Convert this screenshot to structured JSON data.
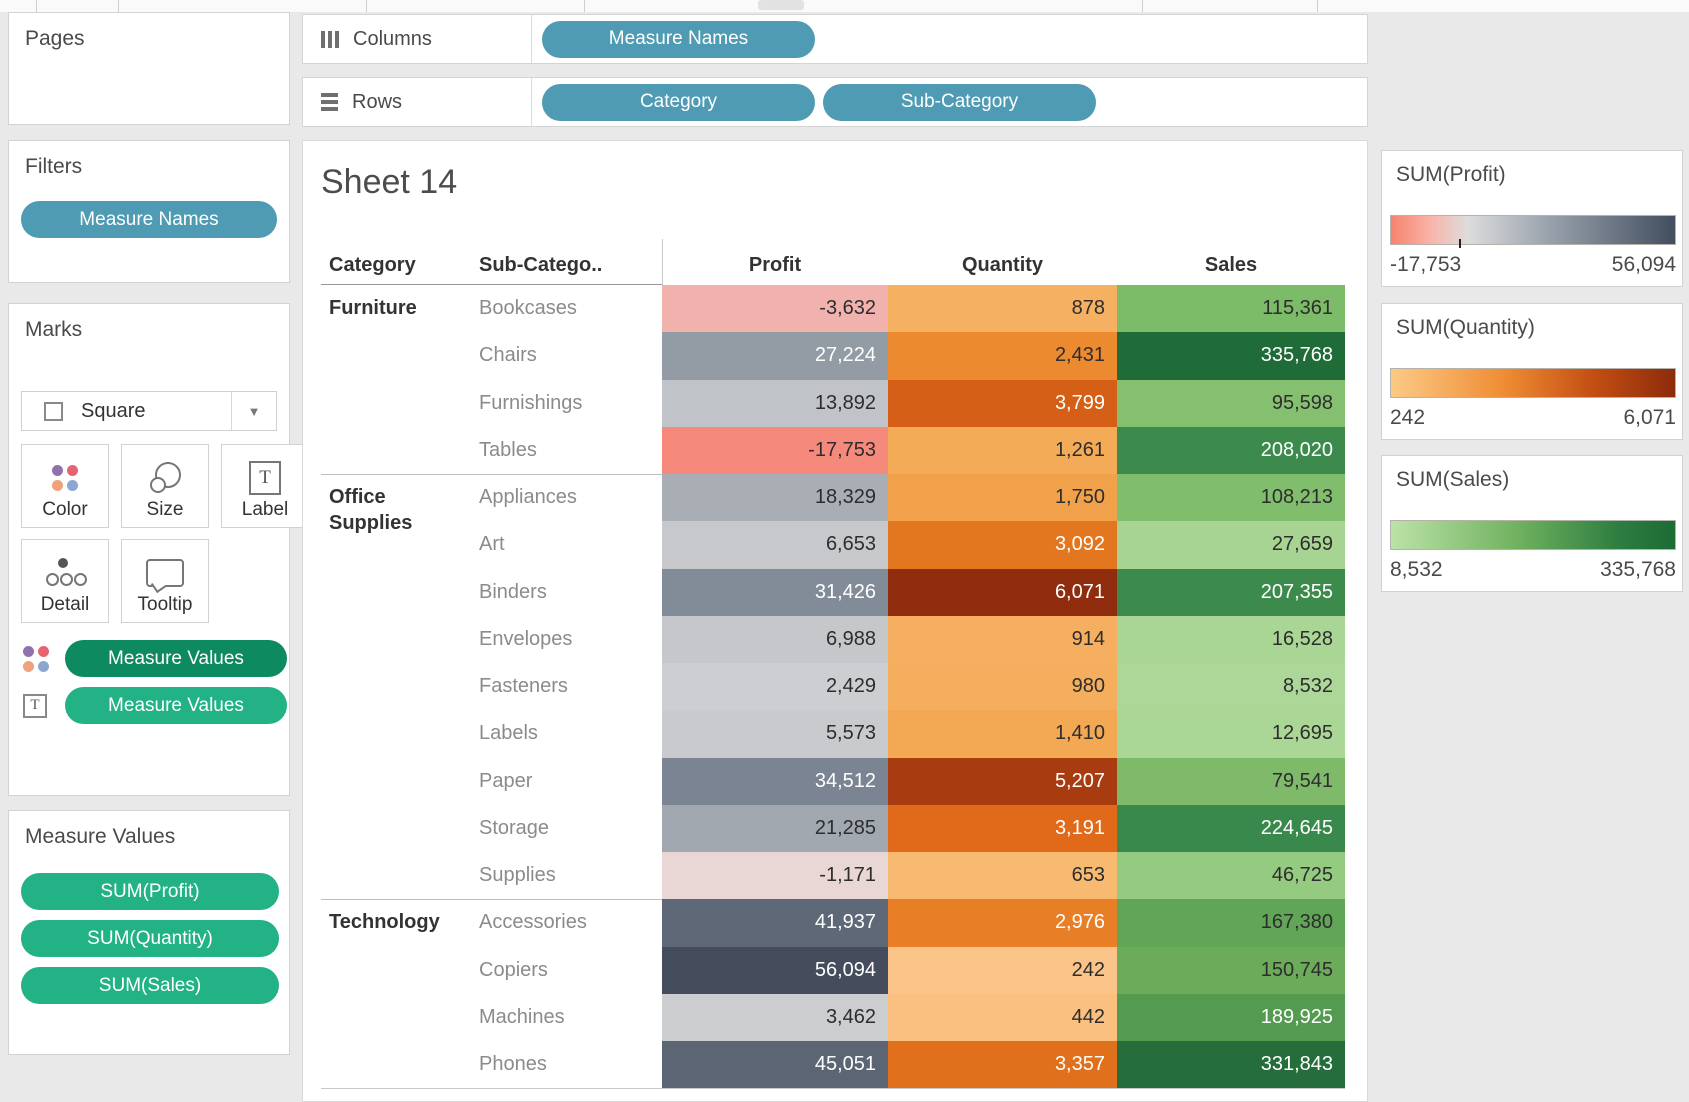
{
  "pages": {
    "title": "Pages"
  },
  "filters": {
    "title": "Filters",
    "pills": [
      {
        "label": "Measure Names",
        "color": "#4e9bb3"
      }
    ]
  },
  "marks": {
    "title": "Marks",
    "mark_type": "Square",
    "dot_colors": [
      "#9272ad",
      "#e8636f",
      "#efa27c",
      "#8ba7d0"
    ],
    "buttons": [
      {
        "label": "Color",
        "icon": "color-dots-icon"
      },
      {
        "label": "Size",
        "icon": "size-icon"
      },
      {
        "label": "Label",
        "icon": "label-icon"
      },
      {
        "label": "Detail",
        "icon": "detail-icon"
      },
      {
        "label": "Tooltip",
        "icon": "tooltip-icon"
      }
    ],
    "pills": [
      {
        "label": "Measure Values",
        "icon": "color-dots-icon",
        "color": "#0d8a5f"
      },
      {
        "label": "Measure Values",
        "icon": "text-icon",
        "color": "#22b286"
      }
    ]
  },
  "measure_values": {
    "title": "Measure Values",
    "pills": [
      {
        "label": "SUM(Profit)",
        "color": "#22b286"
      },
      {
        "label": "SUM(Quantity)",
        "color": "#22b286"
      },
      {
        "label": "SUM(Sales)",
        "color": "#22b286"
      }
    ]
  },
  "shelves": {
    "columns": {
      "label": "Columns",
      "pills": [
        {
          "label": "Measure Names",
          "color": "#4e9bb3"
        }
      ]
    },
    "rows": {
      "label": "Rows",
      "pills": [
        {
          "label": "Category",
          "color": "#4e9bb3"
        },
        {
          "label": "Sub-Category",
          "color": "#4e9bb3"
        }
      ]
    }
  },
  "sheet": {
    "title": "Sheet 14"
  },
  "table": {
    "headers": [
      "Category",
      "Sub-Catego..",
      "Profit",
      "Quantity",
      "Sales"
    ],
    "rows": [
      {
        "category": "Furniture",
        "group_start": true,
        "sub": "Bookcases",
        "cells": [
          {
            "v": "-3,632",
            "bg": "#f1b2ae",
            "fg": "#2d2d2d"
          },
          {
            "v": "878",
            "bg": "#f6b062",
            "fg": "#2d2d2d"
          },
          {
            "v": "115,361",
            "bg": "#7cbb68",
            "fg": "#2d2d2d"
          }
        ]
      },
      {
        "sub": "Chairs",
        "cells": [
          {
            "v": "27,224",
            "bg": "#939ba4",
            "fg": "#ffffff"
          },
          {
            "v": "2,431",
            "bg": "#ec8a30",
            "fg": "#2d2d2d"
          },
          {
            "v": "335,768",
            "bg": "#206c39",
            "fg": "#ffffff"
          }
        ]
      },
      {
        "sub": "Furnishings",
        "cells": [
          {
            "v": "13,892",
            "bg": "#c0c3c7",
            "fg": "#2d2d2d"
          },
          {
            "v": "3,799",
            "bg": "#d55f16",
            "fg": "#ffffff"
          },
          {
            "v": "95,598",
            "bg": "#85c071",
            "fg": "#2d2d2d"
          }
        ]
      },
      {
        "sub": "Tables",
        "cells": [
          {
            "v": "-17,753",
            "bg": "#f58a7c",
            "fg": "#2d2d2d"
          },
          {
            "v": "1,261",
            "bg": "#f4ab57",
            "fg": "#2d2d2d"
          },
          {
            "v": "208,020",
            "bg": "#3c8a4c",
            "fg": "#ffffff"
          }
        ]
      },
      {
        "category": "Office Supplies",
        "group_start": true,
        "sub": "Appliances",
        "cells": [
          {
            "v": "18,329",
            "bg": "#a9aeb5",
            "fg": "#2d2d2d"
          },
          {
            "v": "1,750",
            "bg": "#f2a14b",
            "fg": "#2d2d2d"
          },
          {
            "v": "108,213",
            "bg": "#80bd6c",
            "fg": "#2d2d2d"
          }
        ]
      },
      {
        "sub": "Art",
        "cells": [
          {
            "v": "6,653",
            "bg": "#c6c8cb",
            "fg": "#2d2d2d"
          },
          {
            "v": "3,092",
            "bg": "#e3771f",
            "fg": "#ffffff"
          },
          {
            "v": "27,659",
            "bg": "#a7d492",
            "fg": "#2d2d2d"
          }
        ]
      },
      {
        "sub": "Binders",
        "cells": [
          {
            "v": "31,426",
            "bg": "#828c98",
            "fg": "#ffffff"
          },
          {
            "v": "6,071",
            "bg": "#8e2c0d",
            "fg": "#ffffff"
          },
          {
            "v": "207,355",
            "bg": "#3d8a4d",
            "fg": "#ffffff"
          }
        ]
      },
      {
        "sub": "Envelopes",
        "cells": [
          {
            "v": "6,988",
            "bg": "#c5c7ca",
            "fg": "#2d2d2d"
          },
          {
            "v": "914",
            "bg": "#f6af60",
            "fg": "#2d2d2d"
          },
          {
            "v": "16,528",
            "bg": "#aad695",
            "fg": "#2d2d2d"
          }
        ]
      },
      {
        "sub": "Fasteners",
        "cells": [
          {
            "v": "2,429",
            "bg": "#cdced1",
            "fg": "#2d2d2d"
          },
          {
            "v": "980",
            "bg": "#f5ae5e",
            "fg": "#2d2d2d"
          },
          {
            "v": "8,532",
            "bg": "#acd798",
            "fg": "#2d2d2d"
          }
        ]
      },
      {
        "sub": "Labels",
        "cells": [
          {
            "v": "5,573",
            "bg": "#c8cacd",
            "fg": "#2d2d2d"
          },
          {
            "v": "1,410",
            "bg": "#f3a853",
            "fg": "#2d2d2d"
          },
          {
            "v": "12,695",
            "bg": "#aad696",
            "fg": "#2d2d2d"
          }
        ]
      },
      {
        "sub": "Paper",
        "cells": [
          {
            "v": "34,512",
            "bg": "#7a8492",
            "fg": "#ffffff"
          },
          {
            "v": "5,207",
            "bg": "#a83c10",
            "fg": "#ffffff"
          },
          {
            "v": "79,541",
            "bg": "#7eba69",
            "fg": "#2d2d2d"
          }
        ]
      },
      {
        "sub": "Storage",
        "cells": [
          {
            "v": "21,285",
            "bg": "#a2a8b0",
            "fg": "#2d2d2d"
          },
          {
            "v": "3,191",
            "bg": "#e06a19",
            "fg": "#ffffff"
          },
          {
            "v": "224,645",
            "bg": "#3a894c",
            "fg": "#ffffff"
          }
        ]
      },
      {
        "sub": "Supplies",
        "cells": [
          {
            "v": "-1,171",
            "bg": "#e8d7d5",
            "fg": "#2d2d2d"
          },
          {
            "v": "653",
            "bg": "#f8ba70",
            "fg": "#2d2d2d"
          },
          {
            "v": "46,725",
            "bg": "#95ca81",
            "fg": "#2d2d2d"
          }
        ]
      },
      {
        "category": "Technology",
        "group_start": true,
        "sub": "Accessories",
        "cells": [
          {
            "v": "41,937",
            "bg": "#5e6877",
            "fg": "#ffffff"
          },
          {
            "v": "2,976",
            "bg": "#e87e26",
            "fg": "#ffffff"
          },
          {
            "v": "167,380",
            "bg": "#61a557",
            "fg": "#2d2d2d"
          }
        ]
      },
      {
        "sub": "Copiers",
        "cells": [
          {
            "v": "56,094",
            "bg": "#454d5d",
            "fg": "#ffffff"
          },
          {
            "v": "242",
            "bg": "#fac489",
            "fg": "#2d2d2d"
          },
          {
            "v": "150,745",
            "bg": "#6cab5a",
            "fg": "#2d2d2d"
          }
        ]
      },
      {
        "sub": "Machines",
        "cells": [
          {
            "v": "3,462",
            "bg": "#cbcdcf",
            "fg": "#2d2d2d"
          },
          {
            "v": "442",
            "bg": "#f9c07f",
            "fg": "#2d2d2d"
          },
          {
            "v": "189,925",
            "bg": "#549b51",
            "fg": "#ffffff"
          }
        ]
      },
      {
        "sub": "Phones",
        "cells": [
          {
            "v": "45,051",
            "bg": "#5b6574",
            "fg": "#ffffff"
          },
          {
            "v": "3,357",
            "bg": "#e1701c",
            "fg": "#ffffff"
          },
          {
            "v": "331,843",
            "bg": "#256e3b",
            "fg": "#ffffff"
          }
        ]
      }
    ]
  },
  "legends": [
    {
      "id": "profit",
      "title": "SUM(Profit)",
      "min": "-17,753",
      "max": "56,094",
      "stops": [
        "#f5836e 0%",
        "#f9b4a9 14%",
        "#dcdcdd 27%",
        "#9aa3ad 55%",
        "#424e5f 100%"
      ],
      "tick_percent": 24
    },
    {
      "id": "quantity",
      "title": "SUM(Quantity)",
      "min": "242",
      "max": "6,071",
      "stops": [
        "#fcca86 0%",
        "#ef8c33 40%",
        "#c24d12 72%",
        "#8c2b0b 100%"
      ]
    },
    {
      "id": "sales",
      "title": "SUM(Sales)",
      "min": "8,532",
      "max": "335,768",
      "stops": [
        "#bce2a8 0%",
        "#6fb15e 45%",
        "#2e7d41 80%",
        "#1b6b34 100%"
      ]
    }
  ]
}
